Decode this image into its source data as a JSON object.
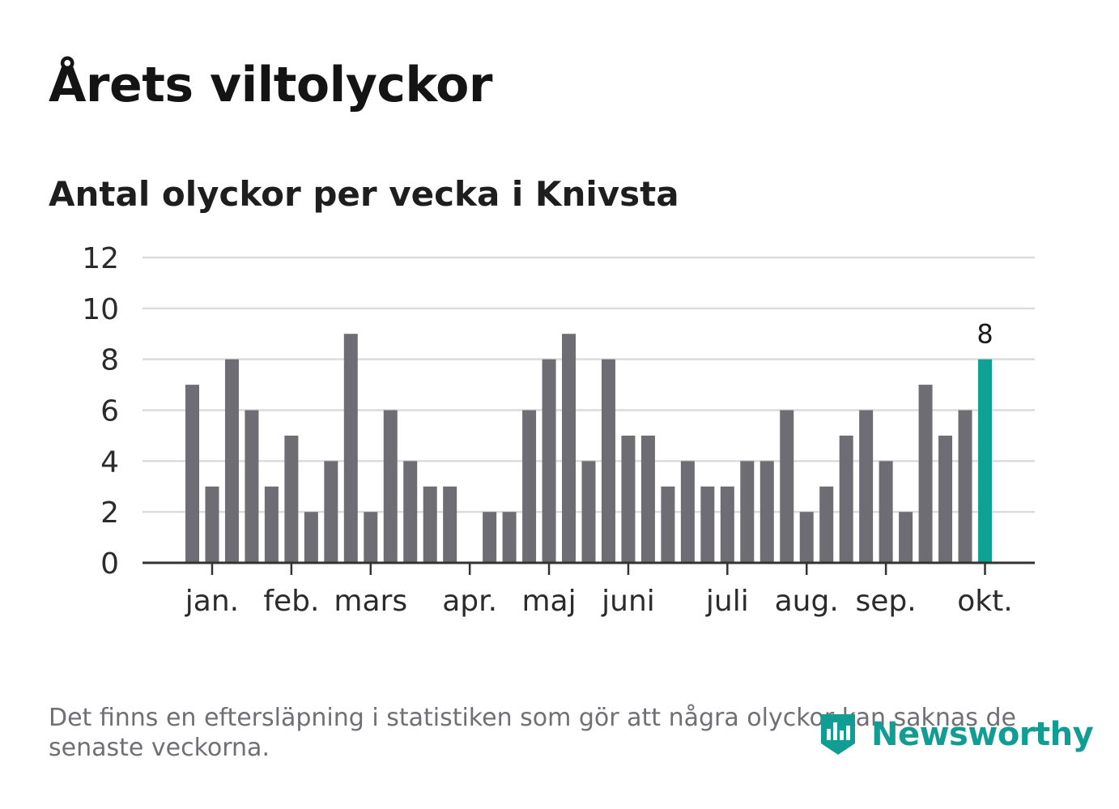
{
  "title": "Årets viltolyckor",
  "subtitle": "Antal olyckor per vecka i Knivsta",
  "footnote": "Det finns en eftersläpning i statistiken som gör att några olyckor kan saknas de senaste veckorna.",
  "brand": {
    "name": "Newsworthy",
    "icon": "newsworthy-logo-icon"
  },
  "colors": {
    "bar": "#6e6d73",
    "highlight": "#0fa294",
    "grid": "#dcdcdc",
    "axis": "#333333",
    "text": "#2b2b2b"
  },
  "chart_data": {
    "type": "bar",
    "title": "Antal olyckor per vecka i Knivsta",
    "xlabel": "",
    "ylabel": "",
    "ylim": [
      0,
      12
    ],
    "yticks": [
      0,
      2,
      4,
      6,
      8,
      10,
      12
    ],
    "weeks": [
      1,
      2,
      3,
      4,
      5,
      6,
      7,
      8,
      9,
      10,
      11,
      12,
      13,
      14,
      15,
      16,
      17,
      18,
      19,
      20,
      21,
      22,
      23,
      24,
      25,
      26,
      27,
      28,
      29,
      30,
      31,
      32,
      33,
      34,
      35,
      36,
      37,
      38,
      39,
      40,
      41
    ],
    "values": [
      7,
      3,
      8,
      6,
      3,
      5,
      2,
      4,
      9,
      2,
      6,
      4,
      3,
      3,
      0,
      2,
      2,
      6,
      8,
      9,
      4,
      8,
      5,
      5,
      3,
      4,
      3,
      3,
      4,
      4,
      6,
      2,
      3,
      5,
      6,
      4,
      2,
      7,
      5,
      6,
      8
    ],
    "highlight_index": 40,
    "highlight_label": "8",
    "month_labels": [
      {
        "label": "jan.",
        "pos": 1.0
      },
      {
        "label": "feb.",
        "pos": 5.0
      },
      {
        "label": "mars",
        "pos": 9.0
      },
      {
        "label": "apr.",
        "pos": 14.0
      },
      {
        "label": "maj",
        "pos": 18.0
      },
      {
        "label": "juni",
        "pos": 22.0
      },
      {
        "label": "juli",
        "pos": 27.0
      },
      {
        "label": "aug.",
        "pos": 31.0
      },
      {
        "label": "sep.",
        "pos": 35.0
      },
      {
        "label": "okt.",
        "pos": 40.0
      }
    ],
    "grid": true,
    "legend": "none"
  }
}
